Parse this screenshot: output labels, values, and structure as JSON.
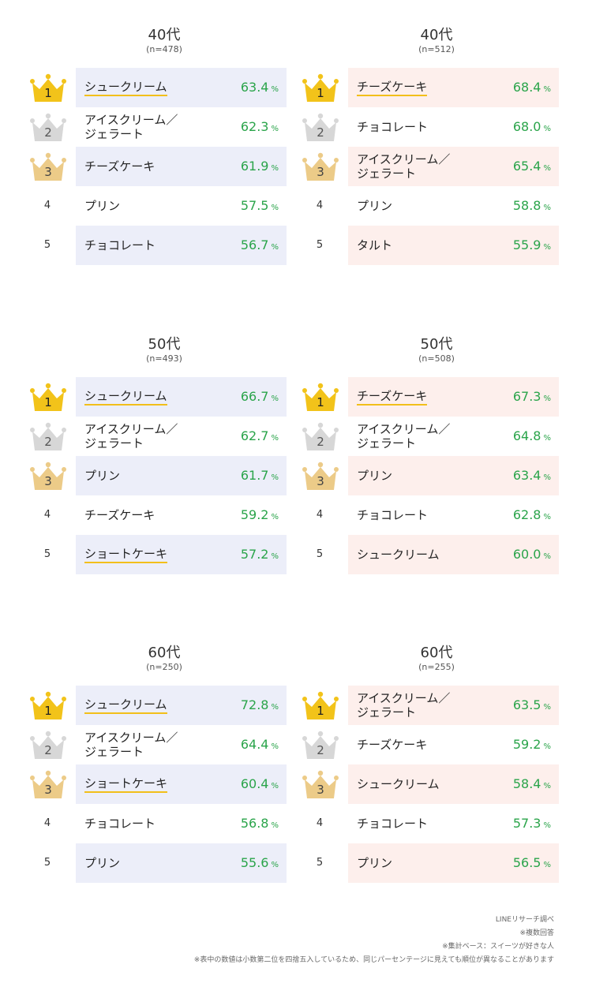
{
  "colors": {
    "blue_shade": "#eceef9",
    "pink_shade": "#fdefec",
    "gold": "#f2c31a",
    "silver": "#d7d7d7",
    "bronze": "#eccb88",
    "percent": "#2aa44a"
  },
  "icons": [
    "crown-gold-icon",
    "crown-silver-icon",
    "crown-bronze-icon"
  ],
  "percent_unit": "%",
  "panels": [
    {
      "title": "40代",
      "n": "(n=478)",
      "theme": "blue",
      "rows": [
        {
          "rank": "1",
          "name": "シュークリーム",
          "value": "63.4",
          "underline": true
        },
        {
          "rank": "2",
          "name": "アイスクリーム／ジェラート",
          "name_l1": "アイスクリーム／",
          "name_l2": "ジェラート",
          "value": "62.3",
          "underline": false
        },
        {
          "rank": "3",
          "name": "チーズケーキ",
          "value": "61.9",
          "underline": false
        },
        {
          "rank": "4",
          "name": "プリン",
          "value": "57.5",
          "underline": false
        },
        {
          "rank": "5",
          "name": "チョコレート",
          "value": "56.7",
          "underline": false
        }
      ]
    },
    {
      "title": "40代",
      "n": "(n=512)",
      "theme": "pink",
      "rows": [
        {
          "rank": "1",
          "name": "チーズケーキ",
          "value": "68.4",
          "underline": true
        },
        {
          "rank": "2",
          "name": "チョコレート",
          "value": "68.0",
          "underline": false
        },
        {
          "rank": "3",
          "name": "アイスクリーム／ジェラート",
          "name_l1": "アイスクリーム／",
          "name_l2": "ジェラート",
          "value": "65.4",
          "underline": false
        },
        {
          "rank": "4",
          "name": "プリン",
          "value": "58.8",
          "underline": false
        },
        {
          "rank": "5",
          "name": "タルト",
          "value": "55.9",
          "underline": false
        }
      ]
    },
    {
      "title": "50代",
      "n": "(n=493)",
      "theme": "blue",
      "rows": [
        {
          "rank": "1",
          "name": "シュークリーム",
          "value": "66.7",
          "underline": true
        },
        {
          "rank": "2",
          "name": "アイスクリーム／ジェラート",
          "name_l1": "アイスクリーム／",
          "name_l2": "ジェラート",
          "value": "62.7",
          "underline": false
        },
        {
          "rank": "3",
          "name": "プリン",
          "value": "61.7",
          "underline": false
        },
        {
          "rank": "4",
          "name": "チーズケーキ",
          "value": "59.2",
          "underline": false
        },
        {
          "rank": "5",
          "name": "ショートケーキ",
          "value": "57.2",
          "underline": true
        }
      ]
    },
    {
      "title": "50代",
      "n": "(n=508)",
      "theme": "pink",
      "rows": [
        {
          "rank": "1",
          "name": "チーズケーキ",
          "value": "67.3",
          "underline": true
        },
        {
          "rank": "2",
          "name": "アイスクリーム／ジェラート",
          "name_l1": "アイスクリーム／",
          "name_l2": "ジェラート",
          "value": "64.8",
          "underline": false
        },
        {
          "rank": "3",
          "name": "プリン",
          "value": "63.4",
          "underline": false
        },
        {
          "rank": "4",
          "name": "チョコレート",
          "value": "62.8",
          "underline": false
        },
        {
          "rank": "5",
          "name": "シュークリーム",
          "value": "60.0",
          "underline": false
        }
      ]
    },
    {
      "title": "60代",
      "n": "(n=250)",
      "theme": "blue",
      "rows": [
        {
          "rank": "1",
          "name": "シュークリーム",
          "value": "72.8",
          "underline": true
        },
        {
          "rank": "2",
          "name": "アイスクリーム／ジェラート",
          "name_l1": "アイスクリーム／",
          "name_l2": "ジェラート",
          "value": "64.4",
          "underline": false
        },
        {
          "rank": "3",
          "name": "ショートケーキ",
          "value": "60.4",
          "underline": true
        },
        {
          "rank": "4",
          "name": "チョコレート",
          "value": "56.8",
          "underline": false
        },
        {
          "rank": "5",
          "name": "プリン",
          "value": "55.6",
          "underline": false
        }
      ]
    },
    {
      "title": "60代",
      "n": "(n=255)",
      "theme": "pink",
      "rows": [
        {
          "rank": "1",
          "name": "アイスクリーム／ジェラート",
          "name_l1": "アイスクリーム／",
          "name_l2": "ジェラート",
          "value": "63.5",
          "underline": false
        },
        {
          "rank": "2",
          "name": "チーズケーキ",
          "value": "59.2",
          "underline": false
        },
        {
          "rank": "3",
          "name": "シュークリーム",
          "value": "58.4",
          "underline": false
        },
        {
          "rank": "4",
          "name": "チョコレート",
          "value": "57.3",
          "underline": false
        },
        {
          "rank": "5",
          "name": "プリン",
          "value": "56.5",
          "underline": false
        }
      ]
    }
  ],
  "notes": [
    "LINEリサーチ調べ",
    "※複数回答",
    "※集計ベース：スイーツが好きな人",
    "※表中の数値は小数第二位を四捨五入しているため、同じパーセンテージに見えても順位が異なることがあります"
  ]
}
